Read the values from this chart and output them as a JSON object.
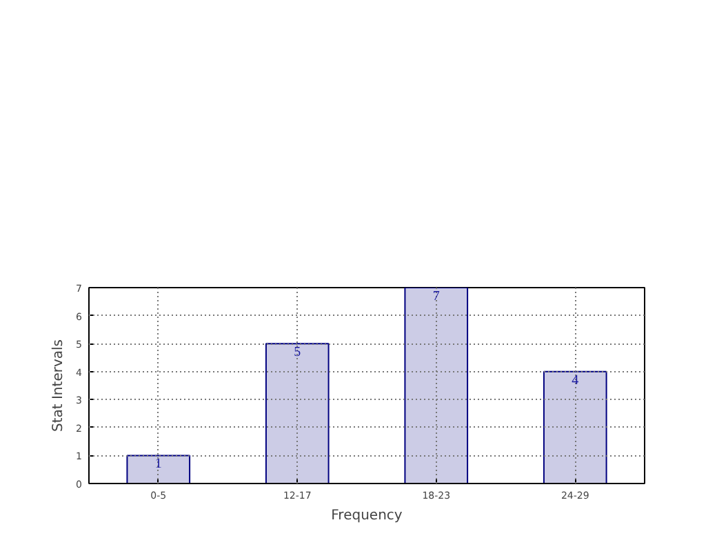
{
  "chart_data": {
    "type": "bar",
    "xlabel": "Frequency",
    "ylabel": "Stat Intervals",
    "categories": [
      "0-5",
      "12-17",
      "18-23",
      "24-29"
    ],
    "values": [
      1,
      5,
      7,
      4
    ],
    "color": "#cccce6",
    "ylim": [
      0,
      7
    ],
    "yticks": [
      0,
      1,
      2,
      3,
      4,
      5,
      6,
      7
    ],
    "grid": true,
    "data_labels": true
  }
}
